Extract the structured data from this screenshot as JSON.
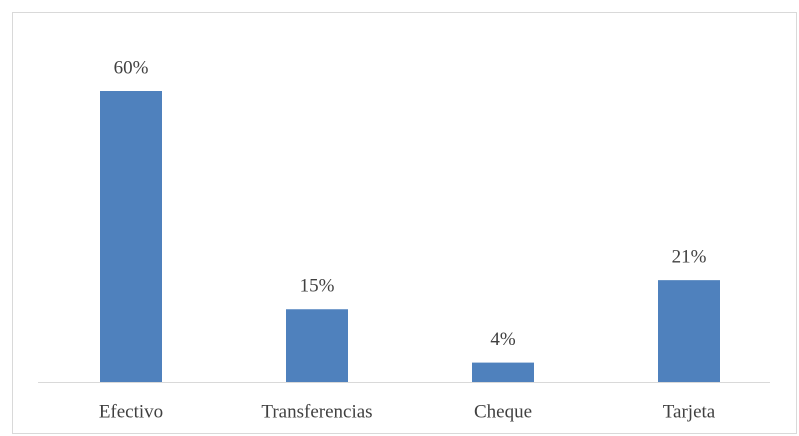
{
  "chart_data": {
    "type": "bar",
    "categories": [
      "Efectivo",
      "Transferencias",
      "Cheque",
      "Tarjeta"
    ],
    "values": [
      60,
      15,
      4,
      21
    ],
    "value_labels": [
      "60%",
      "15%",
      "4%",
      "21%"
    ],
    "color": "#4f81bd"
  }
}
